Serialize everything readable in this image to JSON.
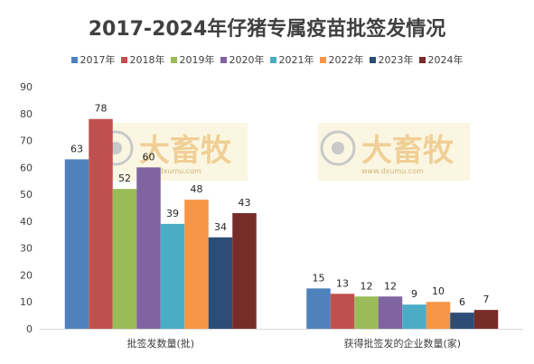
{
  "chart_data": {
    "type": "bar",
    "title": "2017-2024年仔猪专属疫苗批签发情况",
    "categories": [
      "批签发数量(批)",
      "获得批签发的企业数量(家)"
    ],
    "series": [
      {
        "name": "2017年",
        "color": "#4f81bd",
        "values": [
          63,
          15
        ]
      },
      {
        "name": "2018年",
        "color": "#c0504d",
        "values": [
          78,
          13
        ]
      },
      {
        "name": "2019年",
        "color": "#9bbb59",
        "values": [
          52,
          12
        ]
      },
      {
        "name": "2020年",
        "color": "#8064a2",
        "values": [
          60,
          12
        ]
      },
      {
        "name": "2021年",
        "color": "#4bacc6",
        "values": [
          39,
          9
        ]
      },
      {
        "name": "2022年",
        "color": "#f79646",
        "values": [
          48,
          10
        ]
      },
      {
        "name": "2023年",
        "color": "#2c4d75",
        "values": [
          34,
          6
        ]
      },
      {
        "name": "2024年",
        "color": "#772c2a",
        "values": [
          43,
          7
        ]
      }
    ],
    "ylim": [
      0,
      90
    ],
    "yticks": [
      0,
      10,
      20,
      30,
      40,
      50,
      60,
      70,
      80,
      90
    ],
    "grid": false,
    "legend": "top-center"
  },
  "watermark": {
    "text": "大畜牧",
    "sub": "www.dxumu.com"
  }
}
